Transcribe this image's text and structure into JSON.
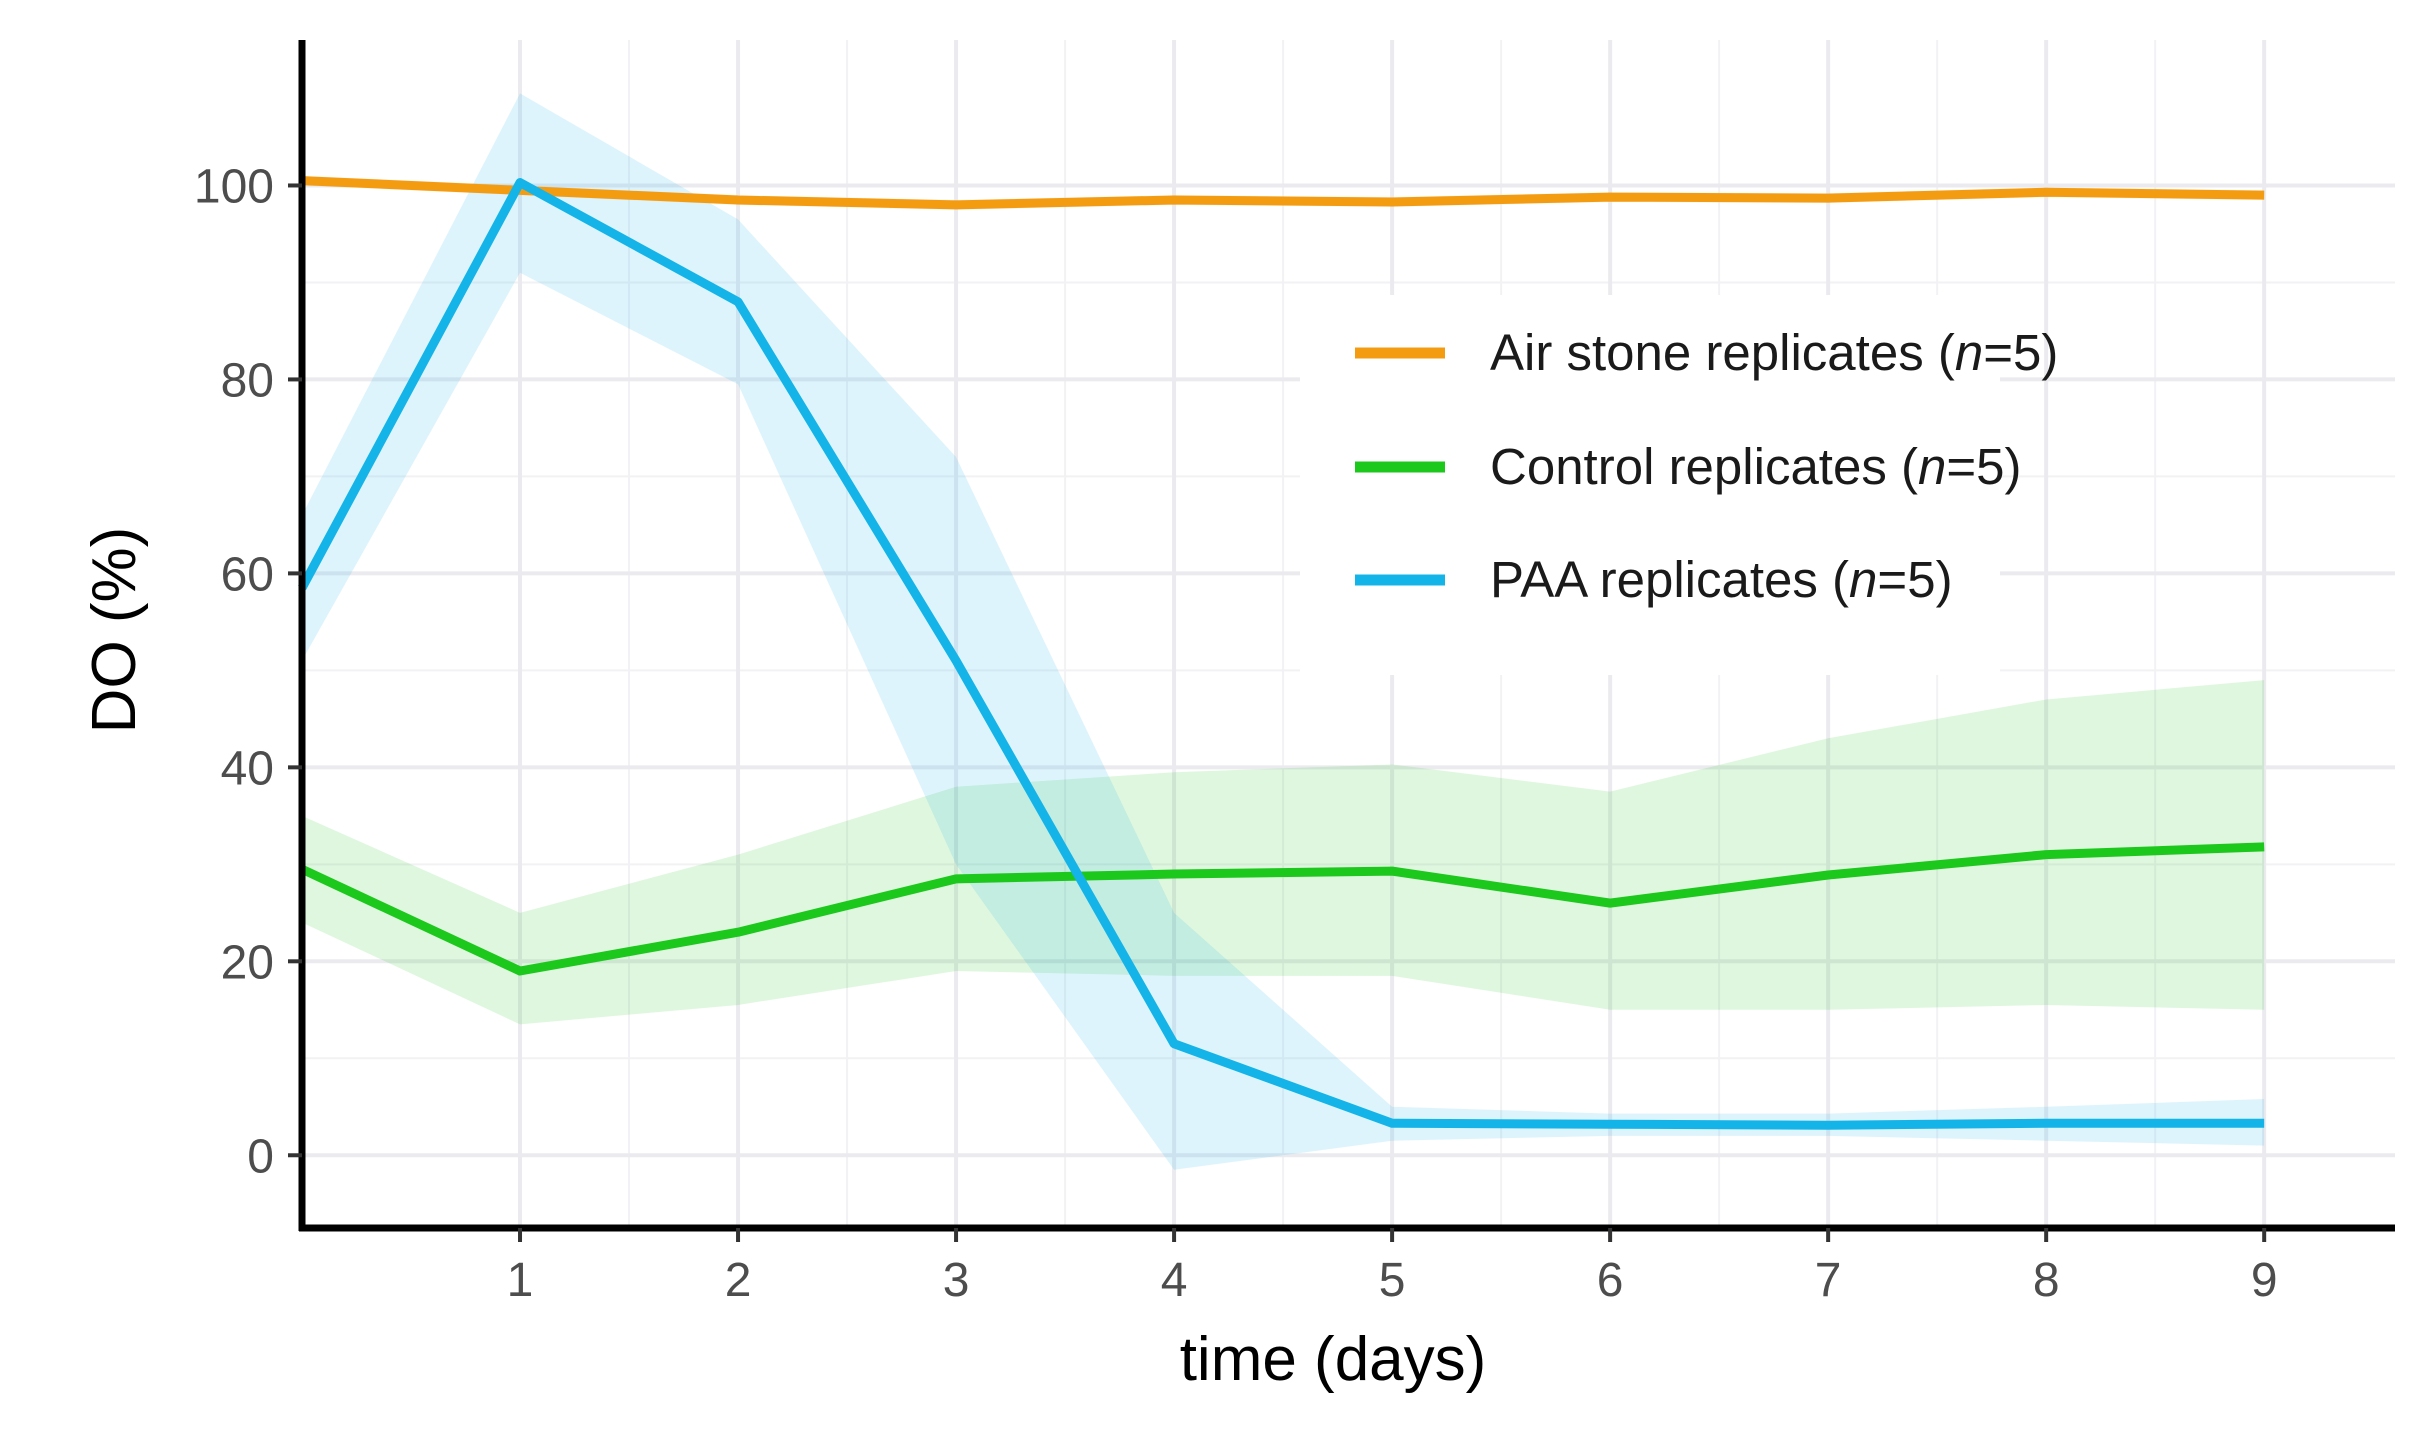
{
  "chart_data": {
    "type": "line",
    "title": "",
    "xlabel": "time (days)",
    "ylabel": "DO (%)",
    "xlim": [
      0,
      9.6
    ],
    "ylim": [
      -7.5,
      115
    ],
    "x_ticks": [
      1,
      2,
      3,
      4,
      5,
      6,
      7,
      8,
      9
    ],
    "x_tick_labels": [
      "1",
      "2",
      "3",
      "4",
      "5",
      "6",
      "7",
      "8",
      "9"
    ],
    "y_ticks": [
      0,
      20,
      40,
      60,
      80,
      100
    ],
    "y_tick_labels": [
      "0",
      "20",
      "40",
      "60",
      "80",
      "100"
    ],
    "grid": true,
    "legend_position": "upper-right",
    "x": [
      0,
      1,
      2,
      3,
      4,
      5,
      6,
      7,
      8,
      9
    ],
    "series": [
      {
        "name": "Air stone replicates",
        "legend_prefix": "Air stone replicates (",
        "legend_n": "n",
        "legend_suffix": "=5)",
        "color": "#F39C12",
        "band_color": "#F39C12",
        "values": [
          100.5,
          99.5,
          98.5,
          98,
          98.5,
          98.3,
          98.8,
          98.7,
          99.3,
          99
        ],
        "lower": [
          100,
          99,
          98,
          97.5,
          98,
          97.8,
          98.3,
          98.2,
          98.8,
          98.5
        ],
        "upper": [
          101,
          100,
          99,
          98.5,
          99,
          98.8,
          99.3,
          99.2,
          99.8,
          99.5
        ]
      },
      {
        "name": "Control replicates",
        "legend_prefix": "Control replicates (",
        "legend_n": "n",
        "legend_suffix": "=5)",
        "color": "#1DC81D",
        "band_color": "#1DC81D",
        "values": [
          29.5,
          19,
          23,
          28.5,
          29,
          29.3,
          26,
          28.9,
          31,
          31.8
        ],
        "lower": [
          24,
          13.5,
          15.5,
          19,
          18.5,
          18.5,
          15,
          15,
          15.5,
          15
        ],
        "upper": [
          35,
          25,
          31,
          38,
          39.5,
          40.3,
          37.5,
          43,
          47,
          49
        ]
      },
      {
        "name": "PAA replicates",
        "legend_prefix": "PAA replicates (",
        "legend_n": "n",
        "legend_suffix": "=5)",
        "color": "#15B4E8",
        "band_color": "#15B4E8",
        "values": [
          58.5,
          100.3,
          88,
          51,
          11.5,
          3.3,
          3.2,
          3.1,
          3.3,
          3.3
        ],
        "lower": [
          51,
          91,
          79.5,
          30,
          -1.5,
          1.5,
          2,
          2,
          1.5,
          1
        ],
        "upper": [
          66,
          109.5,
          96.5,
          72,
          25,
          5,
          4.3,
          4.3,
          5,
          5.8
        ]
      }
    ]
  }
}
